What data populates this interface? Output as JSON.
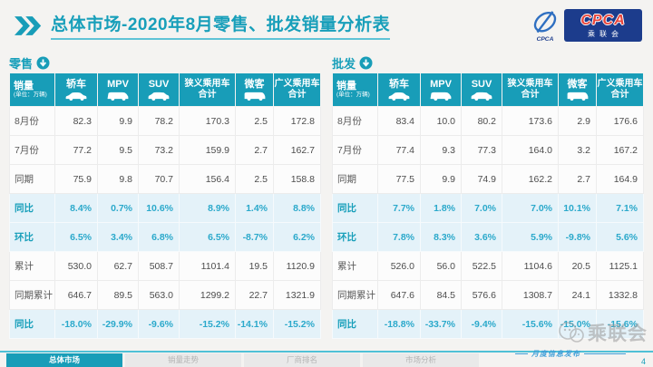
{
  "title": {
    "section": "总体市场",
    "rest": "-2020年8月零售、批发销量分析表"
  },
  "logo": {
    "acronym": "CPCA",
    "name": "乘联会",
    "emblem_text": "CPCA"
  },
  "columns": {
    "sales": "销量",
    "unit": "(单位：万辆)",
    "sedan": "轿车",
    "mpv": "MPV",
    "suv": "SUV",
    "narrow_l1": "狭义乘用车",
    "narrow_l2": "合计",
    "minibus": "微客",
    "broad_l1": "广义乘用车",
    "broad_l2": "合计"
  },
  "watermark_diagonal": "CPCA乘联会",
  "footer": {
    "tabs": [
      {
        "label": "总体市场",
        "active": true
      },
      {
        "label": "销量走势",
        "active": false
      },
      {
        "label": "厂商排名",
        "active": false
      },
      {
        "label": "市场分析",
        "active": false
      }
    ],
    "watermark_name": "乘联会",
    "publish_label": "月度信息发布",
    "page": "4"
  },
  "colors": {
    "teal": "#189db8",
    "title_teal": "#189fba",
    "highlight_bg": "#e4f2f9",
    "highlight_text": "#2ba9cb",
    "logo_navy": "#1c3c8c",
    "logo_red": "#e8453c",
    "footer_blue": "#3f9fd8"
  },
  "chart_data": [
    {
      "type": "table",
      "title": "零售",
      "unit": "万辆",
      "columns": [
        "销量(单位：万辆)",
        "轿车",
        "MPV",
        "SUV",
        "狭义乘用车合计",
        "微客",
        "广义乘用车合计"
      ],
      "rows": [
        {
          "label": "8月份",
          "values": [
            "82.3",
            "9.9",
            "78.2",
            "170.3",
            "2.5",
            "172.8"
          ],
          "highlight": false
        },
        {
          "label": "7月份",
          "values": [
            "77.2",
            "9.5",
            "73.2",
            "159.9",
            "2.7",
            "162.7"
          ],
          "highlight": false
        },
        {
          "label": "同期",
          "values": [
            "75.9",
            "9.8",
            "70.7",
            "156.4",
            "2.5",
            "158.8"
          ],
          "highlight": false
        },
        {
          "label": "同比",
          "values": [
            "8.4%",
            "0.7%",
            "10.6%",
            "8.9%",
            "1.4%",
            "8.8%"
          ],
          "highlight": true
        },
        {
          "label": "环比",
          "values": [
            "6.5%",
            "3.4%",
            "6.8%",
            "6.5%",
            "-8.7%",
            "6.2%"
          ],
          "highlight": true
        },
        {
          "label": "累计",
          "values": [
            "530.0",
            "62.7",
            "508.7",
            "1101.4",
            "19.5",
            "1120.9"
          ],
          "highlight": false
        },
        {
          "label": "同期累计",
          "values": [
            "646.7",
            "89.5",
            "563.0",
            "1299.2",
            "22.7",
            "1321.9"
          ],
          "highlight": false
        },
        {
          "label": "同比",
          "values": [
            "-18.0%",
            "-29.9%",
            "-9.6%",
            "-15.2%",
            "-14.1%",
            "-15.2%"
          ],
          "highlight": true
        }
      ]
    },
    {
      "type": "table",
      "title": "批发",
      "unit": "万辆",
      "columns": [
        "销量(单位：万辆)",
        "轿车",
        "MPV",
        "SUV",
        "狭义乘用车合计",
        "微客",
        "广义乘用车合计"
      ],
      "rows": [
        {
          "label": "8月份",
          "values": [
            "83.4",
            "10.0",
            "80.2",
            "173.6",
            "2.9",
            "176.6"
          ],
          "highlight": false
        },
        {
          "label": "7月份",
          "values": [
            "77.4",
            "9.3",
            "77.3",
            "164.0",
            "3.2",
            "167.2"
          ],
          "highlight": false
        },
        {
          "label": "同期",
          "values": [
            "77.5",
            "9.9",
            "74.9",
            "162.2",
            "2.7",
            "164.9"
          ],
          "highlight": false
        },
        {
          "label": "同比",
          "values": [
            "7.7%",
            "1.8%",
            "7.0%",
            "7.0%",
            "10.1%",
            "7.1%"
          ],
          "highlight": true
        },
        {
          "label": "环比",
          "values": [
            "7.8%",
            "8.3%",
            "3.6%",
            "5.9%",
            "-9.8%",
            "5.6%"
          ],
          "highlight": true
        },
        {
          "label": "累计",
          "values": [
            "526.0",
            "56.0",
            "522.5",
            "1104.6",
            "20.5",
            "1125.1"
          ],
          "highlight": false
        },
        {
          "label": "同期累计",
          "values": [
            "647.6",
            "84.5",
            "576.6",
            "1308.7",
            "24.1",
            "1332.8"
          ],
          "highlight": false
        },
        {
          "label": "同比",
          "values": [
            "-18.8%",
            "-33.7%",
            "-9.4%",
            "-15.6%",
            "-15.0%",
            "-15.6%"
          ],
          "highlight": true
        }
      ]
    }
  ]
}
